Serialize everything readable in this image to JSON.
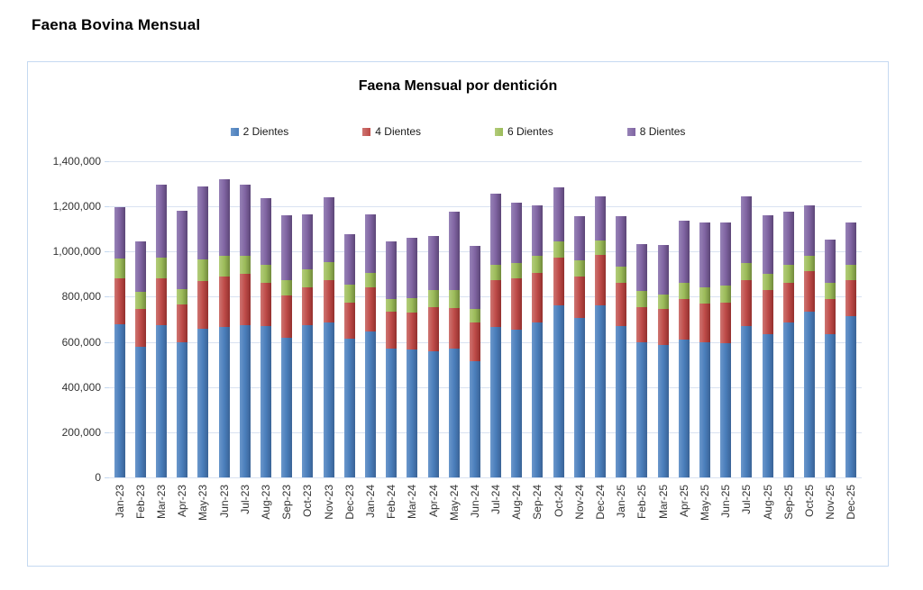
{
  "page": {
    "title": "Faena Bovina Mensual"
  },
  "chart_data": {
    "type": "bar",
    "stacked": true,
    "title": "Faena Mensual por dentición",
    "xlabel": "",
    "ylabel": "",
    "ylim": [
      0,
      1400000
    ],
    "ytick_step": 200000,
    "grid": true,
    "legend_position": "top",
    "categories": [
      "Jan-23",
      "Feb-23",
      "Mar-23",
      "Apr-23",
      "May-23",
      "Jun-23",
      "Jul-23",
      "Aug-23",
      "Sep-23",
      "Oct-23",
      "Nov-23",
      "Dec-23",
      "Jan-24",
      "Feb-24",
      "Mar-24",
      "Apr-24",
      "May-24",
      "Jun-24",
      "Jul-24",
      "Aug-24",
      "Sep-24",
      "Oct-24",
      "Nov-24",
      "Dec-24",
      "Jan-25",
      "Feb-25",
      "Mar-25",
      "Apr-25",
      "May-25",
      "Jun-25",
      "Jul-25",
      "Aug-25",
      "Sep-25",
      "Oct-25",
      "Nov-25",
      "Dec-25"
    ],
    "series": [
      {
        "name": "2 Dientes",
        "color": "#4A7EBB",
        "color_light": "#6B97CB",
        "color_dark": "#3A6396",
        "values": [
          680000,
          580000,
          675000,
          600000,
          660000,
          665000,
          675000,
          670000,
          620000,
          675000,
          685000,
          615000,
          645000,
          570000,
          565000,
          560000,
          570000,
          515000,
          665000,
          655000,
          685000,
          760000,
          705000,
          760000,
          670000,
          600000,
          585000,
          610000,
          600000,
          595000,
          670000,
          635000,
          685000,
          735000,
          635000,
          715000
        ]
      },
      {
        "name": "4 Dientes",
        "color": "#BE4B48",
        "color_light": "#CE7572",
        "color_dark": "#93302E",
        "values": [
          200000,
          165000,
          205000,
          165000,
          210000,
          225000,
          225000,
          190000,
          185000,
          165000,
          190000,
          160000,
          195000,
          165000,
          165000,
          195000,
          180000,
          170000,
          210000,
          225000,
          220000,
          215000,
          185000,
          225000,
          190000,
          155000,
          160000,
          180000,
          170000,
          180000,
          205000,
          195000,
          175000,
          180000,
          155000,
          160000
        ]
      },
      {
        "name": "6 Dientes",
        "color": "#9BBB59",
        "color_light": "#B3CC7B",
        "color_dark": "#71893C",
        "values": [
          90000,
          75000,
          95000,
          70000,
          95000,
          90000,
          80000,
          80000,
          70000,
          80000,
          80000,
          80000,
          65000,
          55000,
          65000,
          75000,
          80000,
          60000,
          65000,
          70000,
          75000,
          70000,
          70000,
          65000,
          75000,
          70000,
          65000,
          70000,
          70000,
          75000,
          75000,
          70000,
          80000,
          65000,
          70000,
          65000
        ]
      },
      {
        "name": "8 Dientes",
        "color": "#8064A2",
        "color_light": "#9783B7",
        "color_dark": "#5C4677",
        "values": [
          225000,
          225000,
          320000,
          345000,
          325000,
          340000,
          315000,
          295000,
          285000,
          245000,
          285000,
          220000,
          260000,
          255000,
          265000,
          240000,
          345000,
          280000,
          315000,
          265000,
          225000,
          240000,
          195000,
          195000,
          220000,
          210000,
          220000,
          275000,
          290000,
          280000,
          295000,
          260000,
          235000,
          225000,
          195000,
          190000
        ]
      }
    ]
  },
  "colors": {
    "chart_border": "#C5D9F1",
    "gridline": "#D9E2F1",
    "axis_text": "#333333",
    "title_text": "#000000"
  }
}
